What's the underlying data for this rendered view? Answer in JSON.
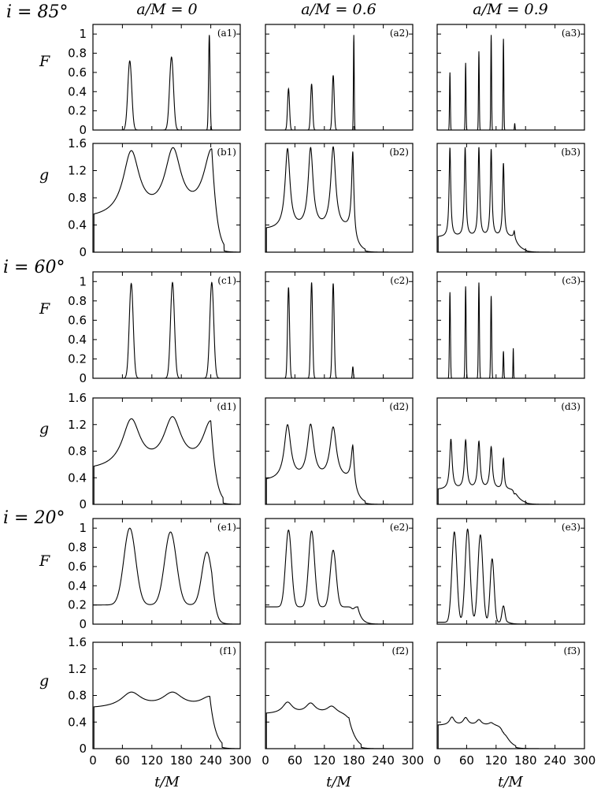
{
  "figure": {
    "columns": [
      "a/M = 0",
      "a/M = 0.6",
      "a/M = 0.9"
    ],
    "inclinations": [
      "i = 85°",
      "i = 60°",
      "i = 20°"
    ],
    "row_labels": [
      "F",
      "g",
      "F",
      "g",
      "F",
      "g"
    ],
    "xlabel": "t/M"
  },
  "chart_data": [
    {
      "type": "line",
      "panel": "(a1)",
      "inclination": "i = 85°",
      "spin": "a/M = 0",
      "ylabel": "F",
      "xlim": [
        0,
        300
      ],
      "ylim": [
        0,
        1.1
      ],
      "yticks": [
        0,
        0.2,
        0.4,
        0.6,
        0.8,
        1
      ],
      "xticks": [
        0,
        60,
        120,
        180,
        240,
        300
      ],
      "peaks": [
        {
          "t": 75,
          "v": 0.72,
          "w": 4
        },
        {
          "t": 160,
          "v": 0.76,
          "w": 4
        },
        {
          "t": 237,
          "v": 0.99,
          "w": 1.5
        }
      ]
    },
    {
      "type": "line",
      "panel": "(a2)",
      "inclination": "i = 85°",
      "spin": "a/M = 0.6",
      "ylabel": "F",
      "xlim": [
        0,
        300
      ],
      "ylim": [
        0,
        1.1
      ],
      "yticks": [
        0,
        0.2,
        0.4,
        0.6,
        0.8,
        1
      ],
      "xticks": [
        0,
        60,
        120,
        180,
        240,
        300
      ],
      "peaks": [
        {
          "t": 47,
          "v": 0.43,
          "w": 2
        },
        {
          "t": 94,
          "v": 0.48,
          "w": 2
        },
        {
          "t": 138,
          "v": 0.57,
          "w": 2
        },
        {
          "t": 180,
          "v": 0.99,
          "w": 0.8
        }
      ]
    },
    {
      "type": "line",
      "panel": "(a3)",
      "inclination": "i = 85°",
      "spin": "a/M = 0.9",
      "ylabel": "F",
      "xlim": [
        0,
        300
      ],
      "ylim": [
        0,
        1.1
      ],
      "yticks": [
        0,
        0.2,
        0.4,
        0.6,
        0.8,
        1
      ],
      "xticks": [
        0,
        60,
        120,
        180,
        240,
        300
      ],
      "peaks": [
        {
          "t": 26,
          "v": 0.6,
          "w": 0.8
        },
        {
          "t": 58,
          "v": 0.7,
          "w": 0.8
        },
        {
          "t": 85,
          "v": 0.82,
          "w": 0.8
        },
        {
          "t": 110,
          "v": 0.99,
          "w": 0.8
        },
        {
          "t": 135,
          "v": 0.95,
          "w": 0.8
        },
        {
          "t": 158,
          "v": 0.07,
          "w": 0.6
        }
      ]
    },
    {
      "type": "line",
      "panel": "(b1)",
      "inclination": "i = 85°",
      "spin": "a/M = 0",
      "ylabel": "g",
      "xlim": [
        0,
        300
      ],
      "ylim": [
        0,
        1.6
      ],
      "yticks": [
        0,
        0.4,
        0.8,
        1.2,
        1.6
      ],
      "xticks": [
        0,
        60,
        120,
        180,
        240,
        300
      ],
      "baseline": 0.48,
      "peaks": [
        {
          "t": 78,
          "v": 1.43,
          "w": 20
        },
        {
          "t": 163,
          "v": 1.43,
          "w": 20
        },
        {
          "t": 242,
          "v": 1.45,
          "w": 20
        }
      ]
    },
    {
      "type": "line",
      "panel": "(b2)",
      "inclination": "i = 85°",
      "spin": "a/M = 0.6",
      "ylabel": "g",
      "xlim": [
        0,
        300
      ],
      "ylim": [
        0,
        1.6
      ],
      "yticks": [
        0,
        0.4,
        0.8,
        1.2,
        1.6
      ],
      "xticks": [
        0,
        60,
        120,
        180,
        240,
        300
      ],
      "baseline": 0.33,
      "peaks": [
        {
          "t": 45,
          "v": 1.5,
          "w": 6
        },
        {
          "t": 92,
          "v": 1.5,
          "w": 6
        },
        {
          "t": 138,
          "v": 1.52,
          "w": 6
        },
        {
          "t": 178,
          "v": 1.45,
          "w": 3
        }
      ]
    },
    {
      "type": "line",
      "panel": "(b3)",
      "inclination": "i = 85°",
      "spin": "a/M = 0.9",
      "ylabel": "g",
      "xlim": [
        0,
        300
      ],
      "ylim": [
        0,
        1.6
      ],
      "yticks": [
        0,
        0.4,
        0.8,
        1.2,
        1.6
      ],
      "xticks": [
        0,
        60,
        120,
        180,
        240,
        300
      ],
      "baseline": 0.22,
      "peaks": [
        {
          "t": 26,
          "v": 1.53,
          "w": 2
        },
        {
          "t": 57,
          "v": 1.53,
          "w": 2
        },
        {
          "t": 85,
          "v": 1.53,
          "w": 2
        },
        {
          "t": 110,
          "v": 1.5,
          "w": 2
        },
        {
          "t": 135,
          "v": 1.3,
          "w": 2
        },
        {
          "t": 157,
          "v": 0.3,
          "w": 1.5
        }
      ]
    },
    {
      "type": "line",
      "panel": "(c1)",
      "inclination": "i = 60°",
      "spin": "a/M = 0",
      "ylabel": "F",
      "xlim": [
        0,
        300
      ],
      "ylim": [
        0,
        1.1
      ],
      "yticks": [
        0,
        0.2,
        0.4,
        0.6,
        0.8,
        1
      ],
      "xticks": [
        0,
        60,
        120,
        180,
        240,
        300
      ],
      "peaks": [
        {
          "t": 78,
          "v": 0.98,
          "w": 4
        },
        {
          "t": 162,
          "v": 0.99,
          "w": 4
        },
        {
          "t": 242,
          "v": 0.99,
          "w": 4
        }
      ]
    },
    {
      "type": "line",
      "panel": "(c2)",
      "inclination": "i = 60°",
      "spin": "a/M = 0.6",
      "ylabel": "F",
      "xlim": [
        0,
        300
      ],
      "ylim": [
        0,
        1.1
      ],
      "yticks": [
        0,
        0.2,
        0.4,
        0.6,
        0.8,
        1
      ],
      "xticks": [
        0,
        60,
        120,
        180,
        240,
        300
      ],
      "peaks": [
        {
          "t": 47,
          "v": 0.94,
          "w": 2
        },
        {
          "t": 94,
          "v": 0.99,
          "w": 2
        },
        {
          "t": 138,
          "v": 0.98,
          "w": 2
        },
        {
          "t": 178,
          "v": 0.12,
          "w": 1
        }
      ]
    },
    {
      "type": "line",
      "panel": "(c3)",
      "inclination": "i = 60°",
      "spin": "a/M = 0.9",
      "ylabel": "F",
      "xlim": [
        0,
        300
      ],
      "ylim": [
        0,
        1.1
      ],
      "yticks": [
        0,
        0.2,
        0.4,
        0.6,
        0.8,
        1
      ],
      "xticks": [
        0,
        60,
        120,
        180,
        240,
        300
      ],
      "peaks": [
        {
          "t": 26,
          "v": 0.89,
          "w": 1
        },
        {
          "t": 58,
          "v": 0.95,
          "w": 1
        },
        {
          "t": 85,
          "v": 0.99,
          "w": 1
        },
        {
          "t": 110,
          "v": 0.85,
          "w": 1
        },
        {
          "t": 135,
          "v": 0.28,
          "w": 0.8
        },
        {
          "t": 155,
          "v": 0.31,
          "w": 0.6
        }
      ]
    },
    {
      "type": "line",
      "panel": "(d1)",
      "inclination": "i = 60°",
      "spin": "a/M = 0",
      "ylabel": "g",
      "xlim": [
        0,
        300
      ],
      "ylim": [
        0,
        1.6
      ],
      "yticks": [
        0,
        0.4,
        0.8,
        1.2,
        1.6
      ],
      "xticks": [
        0,
        60,
        120,
        180,
        240,
        300
      ],
      "baseline": 0.5,
      "peaks": [
        {
          "t": 78,
          "v": 1.23,
          "w": 22
        },
        {
          "t": 162,
          "v": 1.23,
          "w": 22
        },
        {
          "t": 240,
          "v": 1.19,
          "w": 20
        }
      ]
    },
    {
      "type": "line",
      "panel": "(d2)",
      "inclination": "i = 60°",
      "spin": "a/M = 0.6",
      "ylabel": "g",
      "xlim": [
        0,
        300
      ],
      "ylim": [
        0,
        1.6
      ],
      "yticks": [
        0,
        0.4,
        0.8,
        1.2,
        1.6
      ],
      "xticks": [
        0,
        60,
        120,
        180,
        240,
        300
      ],
      "baseline": 0.35,
      "peaks": [
        {
          "t": 45,
          "v": 1.17,
          "w": 8
        },
        {
          "t": 92,
          "v": 1.16,
          "w": 8
        },
        {
          "t": 138,
          "v": 1.13,
          "w": 8
        },
        {
          "t": 178,
          "v": 0.85,
          "w": 4
        }
      ]
    },
    {
      "type": "line",
      "panel": "(d3)",
      "inclination": "i = 60°",
      "spin": "a/M = 0.9",
      "ylabel": "g",
      "xlim": [
        0,
        300
      ],
      "ylim": [
        0,
        1.6
      ],
      "yticks": [
        0,
        0.4,
        0.8,
        1.2,
        1.6
      ],
      "xticks": [
        0,
        60,
        120,
        180,
        240,
        300
      ],
      "baseline": 0.22,
      "peaks": [
        {
          "t": 28,
          "v": 0.97,
          "w": 3
        },
        {
          "t": 58,
          "v": 0.95,
          "w": 3
        },
        {
          "t": 85,
          "v": 0.93,
          "w": 3
        },
        {
          "t": 110,
          "v": 0.85,
          "w": 3
        },
        {
          "t": 135,
          "v": 0.68,
          "w": 2
        },
        {
          "t": 157,
          "v": 0.15,
          "w": 2
        }
      ]
    },
    {
      "type": "line",
      "panel": "(e1)",
      "inclination": "i = 20°",
      "spin": "a/M = 0",
      "ylabel": "F",
      "xlim": [
        0,
        300
      ],
      "ylim": [
        0,
        1.1
      ],
      "yticks": [
        0,
        0.2,
        0.4,
        0.6,
        0.8,
        1
      ],
      "xticks": [
        0,
        60,
        120,
        180,
        240,
        300
      ],
      "baseline": 0.2,
      "peaks": [
        {
          "t": 75,
          "v": 1.0,
          "w": 12
        },
        {
          "t": 158,
          "v": 0.96,
          "w": 12
        },
        {
          "t": 232,
          "v": 0.75,
          "w": 10
        }
      ]
    },
    {
      "type": "line",
      "panel": "(e2)",
      "inclination": "i = 20°",
      "spin": "a/M = 0.6",
      "ylabel": "F",
      "xlim": [
        0,
        300
      ],
      "ylim": [
        0,
        1.1
      ],
      "yticks": [
        0,
        0.2,
        0.4,
        0.6,
        0.8,
        1
      ],
      "xticks": [
        0,
        60,
        120,
        180,
        240,
        300
      ],
      "baseline": 0.18,
      "peaks": [
        {
          "t": 47,
          "v": 0.98,
          "w": 6
        },
        {
          "t": 94,
          "v": 0.97,
          "w": 6
        },
        {
          "t": 138,
          "v": 0.77,
          "w": 6
        },
        {
          "t": 178,
          "v": 0.16,
          "w": 3
        }
      ]
    },
    {
      "type": "line",
      "panel": "(e3)",
      "inclination": "i = 20°",
      "spin": "a/M = 0.9",
      "ylabel": "F",
      "xlim": [
        0,
        300
      ],
      "ylim": [
        0,
        1.1
      ],
      "yticks": [
        0,
        0.2,
        0.4,
        0.6,
        0.8,
        1
      ],
      "xticks": [
        0,
        60,
        120,
        180,
        240,
        300
      ],
      "baseline": 0.02,
      "peaks": [
        {
          "t": 35,
          "v": 0.96,
          "w": 5
        },
        {
          "t": 62,
          "v": 0.99,
          "w": 5
        },
        {
          "t": 88,
          "v": 0.93,
          "w": 5
        },
        {
          "t": 112,
          "v": 0.68,
          "w": 4
        },
        {
          "t": 135,
          "v": 0.19,
          "w": 3
        }
      ]
    },
    {
      "type": "line",
      "panel": "(f1)",
      "inclination": "i = 20°",
      "spin": "a/M = 0",
      "ylabel": "g",
      "xlim": [
        0,
        300
      ],
      "ylim": [
        0,
        1.6
      ],
      "yticks": [
        0,
        0.4,
        0.8,
        1.2,
        1.6
      ],
      "xticks": [
        0,
        60,
        120,
        180,
        240,
        300
      ],
      "baseline": 0.6,
      "peaks": [
        {
          "t": 78,
          "v": 0.83,
          "w": 25
        },
        {
          "t": 162,
          "v": 0.82,
          "w": 25
        },
        {
          "t": 238,
          "v": 0.76,
          "w": 22
        }
      ]
    },
    {
      "type": "line",
      "panel": "(f2)",
      "inclination": "i = 20°",
      "spin": "a/M = 0.6",
      "ylabel": "g",
      "xlim": [
        0,
        300
      ],
      "ylim": [
        0,
        1.6
      ],
      "yticks": [
        0,
        0.4,
        0.8,
        1.2,
        1.6
      ],
      "xticks": [
        0,
        60,
        120,
        180,
        240,
        300
      ],
      "baseline": 0.52,
      "peaks": [
        {
          "t": 45,
          "v": 0.69,
          "w": 12
        },
        {
          "t": 92,
          "v": 0.67,
          "w": 12
        },
        {
          "t": 135,
          "v": 0.63,
          "w": 12
        },
        {
          "t": 170,
          "v": 0.45,
          "w": 8
        }
      ]
    },
    {
      "type": "line",
      "panel": "(f3)",
      "inclination": "i = 20°",
      "spin": "a/M = 0.9",
      "ylabel": "g",
      "xlim": [
        0,
        300
      ],
      "ylim": [
        0,
        1.6
      ],
      "yticks": [
        0,
        0.4,
        0.8,
        1.2,
        1.6
      ],
      "xticks": [
        0,
        60,
        120,
        180,
        240,
        300
      ],
      "baseline": 0.35,
      "peaks": [
        {
          "t": 30,
          "v": 0.47,
          "w": 6
        },
        {
          "t": 58,
          "v": 0.46,
          "w": 6
        },
        {
          "t": 85,
          "v": 0.43,
          "w": 6
        },
        {
          "t": 110,
          "v": 0.39,
          "w": 6
        },
        {
          "t": 135,
          "v": 0.24,
          "w": 5
        }
      ]
    }
  ]
}
